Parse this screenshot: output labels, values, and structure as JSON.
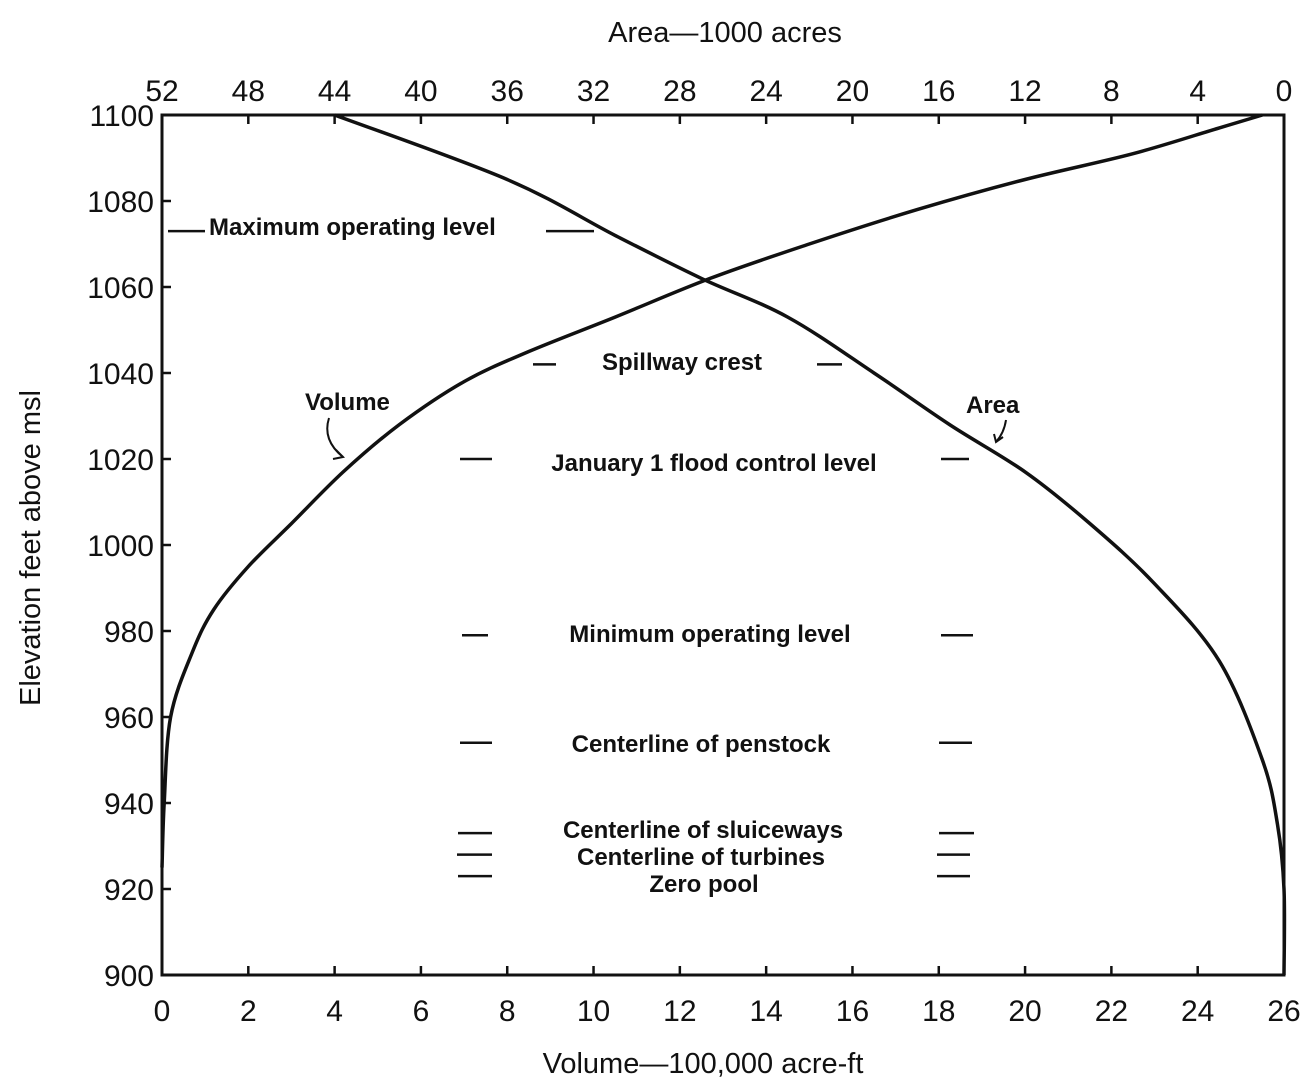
{
  "chart_data": {
    "type": "line",
    "xlabel_bottom": "Volume—100,000 acre-ft",
    "xlabel_top": "Area—1000 acres",
    "ylabel": "Elevation feet above msl",
    "x_bottom_range": [
      0,
      26
    ],
    "x_bottom_ticks": [
      "0",
      "2",
      "4",
      "6",
      "8",
      "10",
      "12",
      "14",
      "16",
      "18",
      "20",
      "22",
      "24",
      "26"
    ],
    "x_top_range": [
      52,
      0
    ],
    "x_top_ticks": [
      "52",
      "48",
      "44",
      "40",
      "36",
      "32",
      "28",
      "24",
      "20",
      "16",
      "12",
      "8",
      "4",
      "0"
    ],
    "y_range": [
      900,
      1100
    ],
    "y_ticks": [
      "900",
      "920",
      "940",
      "960",
      "980",
      "1000",
      "1020",
      "1040",
      "1060",
      "1080",
      "1100"
    ],
    "grid": false,
    "series": [
      {
        "name": "Volume",
        "axis": "bottom",
        "points": [
          [
            0,
            925
          ],
          [
            0.05,
            940
          ],
          [
            0.2,
            960
          ],
          [
            0.7,
            975
          ],
          [
            1.2,
            985
          ],
          [
            2,
            995
          ],
          [
            3,
            1005
          ],
          [
            4.2,
            1017
          ],
          [
            5.5,
            1028
          ],
          [
            7,
            1038
          ],
          [
            8.5,
            1045
          ],
          [
            10.5,
            1053
          ],
          [
            12.7,
            1062
          ],
          [
            15,
            1070
          ],
          [
            17.5,
            1078
          ],
          [
            20,
            1085
          ],
          [
            22.5,
            1091
          ],
          [
            24.5,
            1097
          ],
          [
            25.5,
            1100
          ]
        ]
      },
      {
        "name": "Area",
        "axis": "top",
        "points": [
          [
            44,
            1100
          ],
          [
            36,
            1085
          ],
          [
            31,
            1072
          ],
          [
            27,
            1062
          ],
          [
            23,
            1053
          ],
          [
            19,
            1040
          ],
          [
            15.5,
            1028
          ],
          [
            12,
            1017
          ],
          [
            9,
            1005
          ],
          [
            6,
            991
          ],
          [
            3,
            973
          ],
          [
            1,
            950
          ],
          [
            0.3,
            935
          ],
          [
            0,
            920
          ],
          [
            0,
            900
          ]
        ]
      }
    ],
    "curve_labels": [
      "Volume",
      "Area"
    ],
    "annotations": [
      {
        "text": "Maximum operating level",
        "elevation": 1073
      },
      {
        "text": "Spillway crest",
        "elevation": 1042
      },
      {
        "text": "January 1 flood control  level",
        "elevation": 1020
      },
      {
        "text": "Minimum operating level",
        "elevation": 979
      },
      {
        "text": "Centerline of penstock",
        "elevation": 954
      },
      {
        "text": "Centerline of sluiceways",
        "elevation": 933
      },
      {
        "text": "Centerline of turbines",
        "elevation": 928
      },
      {
        "text": "Zero pool",
        "elevation": 923
      }
    ]
  }
}
